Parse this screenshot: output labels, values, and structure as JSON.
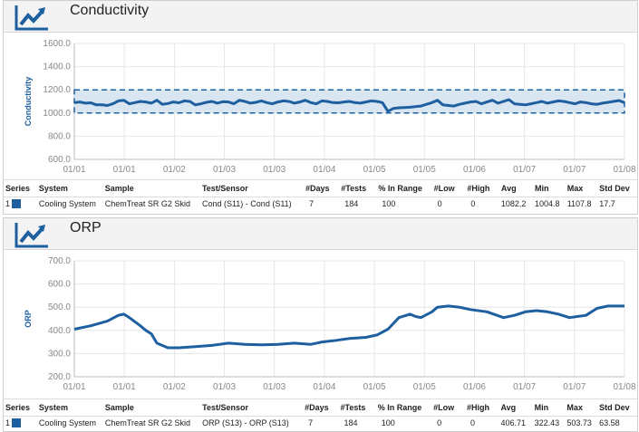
{
  "colors": {
    "series": "#1e5fa0",
    "band": "#d9e6f2",
    "grid": "#e6e6e6"
  },
  "panels": [
    {
      "title": "Conductivity",
      "icon": "trend-chart-icon",
      "chart_data": {
        "type": "line",
        "ylabel": "Conductivity",
        "ylim": [
          600,
          1600
        ],
        "yticks": [
          "1600.0",
          "1400.0",
          "1200.0",
          "1000.0",
          "800.0",
          "600.0"
        ],
        "xticks": [
          "01/01",
          "01/01",
          "01/02",
          "01/03",
          "01/03",
          "01/04",
          "01/05",
          "01/05",
          "01/06",
          "01/07",
          "01/07",
          "01/08"
        ],
        "band": [
          1000,
          1200
        ],
        "x": [
          0,
          0.01,
          0.02,
          0.03,
          0.04,
          0.05,
          0.06,
          0.07,
          0.08,
          0.09,
          0.1,
          0.11,
          0.12,
          0.13,
          0.14,
          0.15,
          0.16,
          0.17,
          0.18,
          0.19,
          0.2,
          0.21,
          0.22,
          0.23,
          0.24,
          0.25,
          0.26,
          0.27,
          0.28,
          0.29,
          0.3,
          0.31,
          0.32,
          0.33,
          0.34,
          0.35,
          0.36,
          0.37,
          0.38,
          0.39,
          0.4,
          0.41,
          0.42,
          0.43,
          0.44,
          0.45,
          0.46,
          0.47,
          0.48,
          0.49,
          0.5,
          0.51,
          0.52,
          0.53,
          0.54,
          0.55,
          0.56,
          0.57,
          0.58,
          0.59,
          0.6,
          0.61,
          0.62,
          0.63,
          0.64,
          0.65,
          0.66,
          0.67,
          0.68,
          0.69,
          0.7,
          0.71,
          0.72,
          0.73,
          0.74,
          0.75,
          0.76,
          0.77,
          0.78,
          0.79,
          0.8,
          0.81,
          0.82,
          0.83,
          0.84,
          0.85,
          0.86,
          0.87,
          0.88,
          0.89,
          0.9,
          0.91,
          0.92,
          0.93,
          0.94,
          0.95,
          0.96,
          0.97,
          0.98,
          0.99,
          1.0
        ],
        "y": [
          1090,
          1095,
          1085,
          1088,
          1070,
          1072,
          1065,
          1080,
          1105,
          1110,
          1080,
          1090,
          1100,
          1095,
          1085,
          1110,
          1075,
          1082,
          1095,
          1088,
          1105,
          1100,
          1070,
          1080,
          1092,
          1100,
          1085,
          1098,
          1095,
          1080,
          1110,
          1100,
          1085,
          1092,
          1105,
          1090,
          1080,
          1095,
          1105,
          1100,
          1085,
          1095,
          1110,
          1090,
          1080,
          1105,
          1100,
          1090,
          1088,
          1095,
          1100,
          1090,
          1085,
          1095,
          1105,
          1100,
          1090,
          1015,
          1040,
          1045,
          1048,
          1050,
          1055,
          1060,
          1075,
          1090,
          1110,
          1070,
          1065,
          1060,
          1075,
          1085,
          1095,
          1100,
          1080,
          1095,
          1110,
          1085,
          1100,
          1115,
          1080,
          1075,
          1070,
          1080,
          1090,
          1100,
          1085,
          1095,
          1105,
          1100,
          1090,
          1080,
          1095,
          1090,
          1080,
          1075,
          1085,
          1092,
          1100,
          1108,
          1090
        ]
      },
      "table": {
        "headers": [
          "Series",
          "System",
          "Sample",
          "Test/Sensor",
          "#Days",
          "#Tests",
          "% In Range",
          "#Low",
          "#High",
          "Avg",
          "Min",
          "Max",
          "Std Dev"
        ],
        "rows": [
          {
            "series": "1",
            "system": "Cooling System",
            "sample": "ChemTreat SR G2 Skid",
            "test": "Cond (S11) - Cond (S11)",
            "days": "7",
            "tests": "184",
            "in_range": "100",
            "low": "0",
            "high": "0",
            "avg": "1082.2",
            "min": "1004.8",
            "max": "1107.8",
            "std": "17.7"
          }
        ]
      }
    },
    {
      "title": "ORP",
      "icon": "trend-chart-icon",
      "chart_data": {
        "type": "line",
        "ylabel": "ORP",
        "ylim": [
          200,
          700
        ],
        "yticks": [
          "700.0",
          "600.0",
          "500.0",
          "400.0",
          "300.0",
          "200.0"
        ],
        "xticks": [
          "01/01",
          "01/01",
          "01/02",
          "01/03",
          "01/03",
          "01/04",
          "01/05",
          "01/05",
          "01/06",
          "01/07",
          "01/07",
          "01/08"
        ],
        "x": [
          0,
          0.03,
          0.06,
          0.08,
          0.09,
          0.1,
          0.12,
          0.13,
          0.14,
          0.15,
          0.17,
          0.19,
          0.22,
          0.25,
          0.28,
          0.31,
          0.34,
          0.37,
          0.4,
          0.43,
          0.45,
          0.47,
          0.5,
          0.53,
          0.55,
          0.57,
          0.59,
          0.61,
          0.62,
          0.63,
          0.65,
          0.66,
          0.68,
          0.7,
          0.72,
          0.75,
          0.78,
          0.8,
          0.82,
          0.84,
          0.86,
          0.88,
          0.9,
          0.93,
          0.95,
          0.97,
          0.99,
          1.0
        ],
        "y": [
          405,
          420,
          440,
          465,
          470,
          455,
          420,
          400,
          385,
          345,
          325,
          325,
          330,
          335,
          345,
          340,
          338,
          340,
          345,
          340,
          350,
          355,
          365,
          370,
          380,
          405,
          455,
          470,
          460,
          455,
          480,
          500,
          505,
          500,
          490,
          480,
          455,
          465,
          480,
          485,
          480,
          470,
          455,
          465,
          495,
          505,
          505,
          505
        ]
      },
      "table": {
        "headers": [
          "Series",
          "System",
          "Sample",
          "Test/Sensor",
          "#Days",
          "#Tests",
          "% In Range",
          "#Low",
          "#High",
          "Avg",
          "Min",
          "Max",
          "Std Dev"
        ],
        "rows": [
          {
            "series": "1",
            "system": "Cooling System",
            "sample": "ChemTreat SR G2 Skid",
            "test": "ORP (S13) - ORP (S13)",
            "days": "7",
            "tests": "184",
            "in_range": "100",
            "low": "0",
            "high": "0",
            "avg": "406.71",
            "min": "322.43",
            "max": "503.73",
            "std": "63.58"
          }
        ]
      }
    }
  ]
}
